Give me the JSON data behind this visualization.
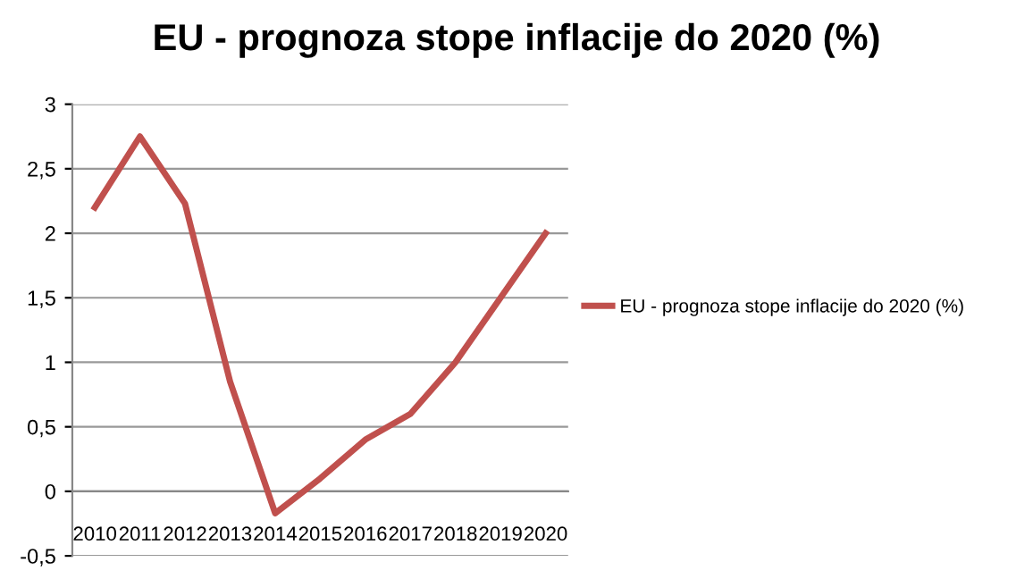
{
  "chart_data": {
    "type": "line",
    "title": "EU - prognoza stope inflacije do 2020 (%)",
    "categories": [
      "2010",
      "2011",
      "2012",
      "2013",
      "2014",
      "2015",
      "2016",
      "2017",
      "2018",
      "2019",
      "2020"
    ],
    "series": [
      {
        "name": "EU - prognoza stope inflacije do 2020 (%)",
        "color": "#c0504d",
        "values": [
          2.2,
          2.75,
          2.23,
          0.85,
          -0.17,
          0.1,
          0.4,
          0.6,
          1.0,
          1.5,
          2.0
        ]
      }
    ],
    "ylim": [
      -0.5,
      3
    ],
    "yticks": [
      {
        "value": -0.5,
        "label": "-0,5"
      },
      0,
      {
        "value": 0.5,
        "label": "0,5"
      },
      1,
      {
        "value": 1.5,
        "label": "1,5"
      },
      2,
      {
        "value": 2.5,
        "label": "2,5"
      },
      3
    ],
    "grid": "y",
    "legend": "right",
    "marker": "none",
    "line_style": "solid"
  }
}
